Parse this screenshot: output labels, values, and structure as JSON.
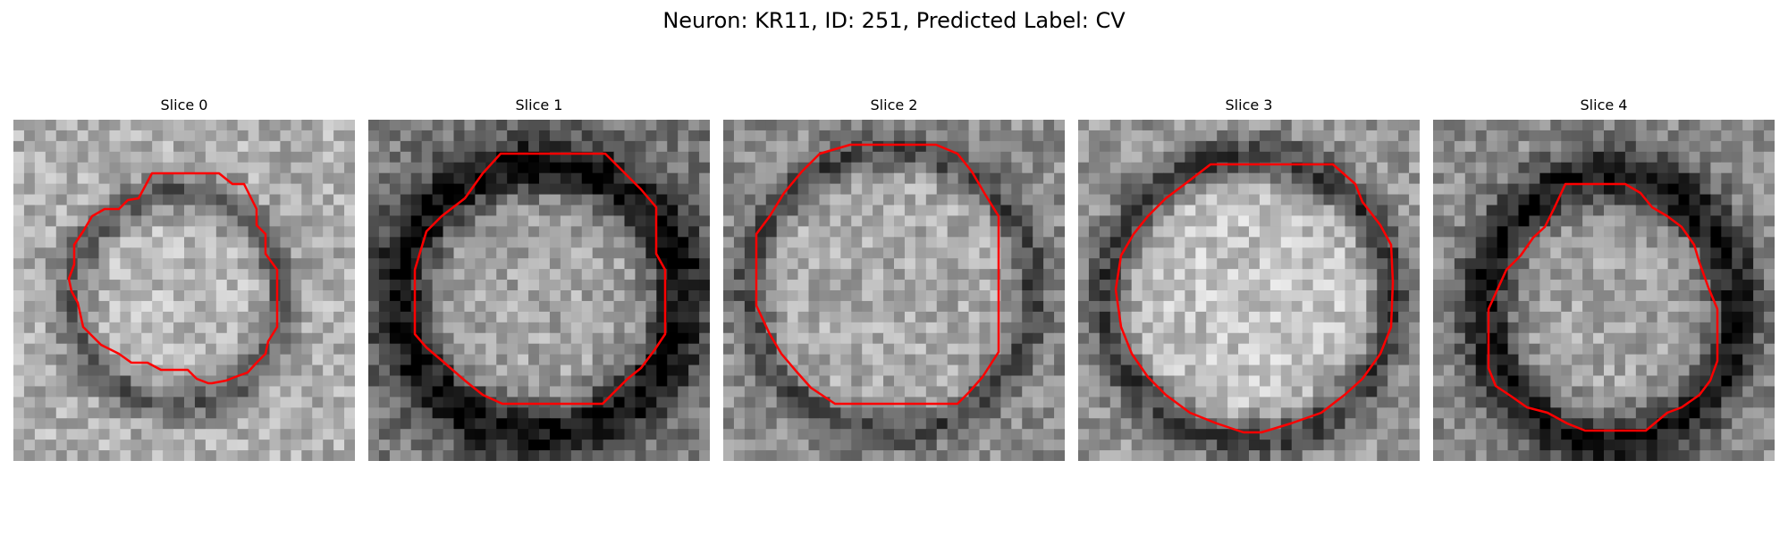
{
  "figure": {
    "title": "Neuron: KR11, ID: 251, Predicted Label: CV"
  },
  "slices": [
    {
      "title": "Slice 0"
    },
    {
      "title": "Slice 1"
    },
    {
      "title": "Slice 2"
    },
    {
      "title": "Slice 3"
    },
    {
      "title": "Slice 4"
    }
  ],
  "colors": {
    "contour": "#ff0000",
    "colormap": "grayscale"
  }
}
